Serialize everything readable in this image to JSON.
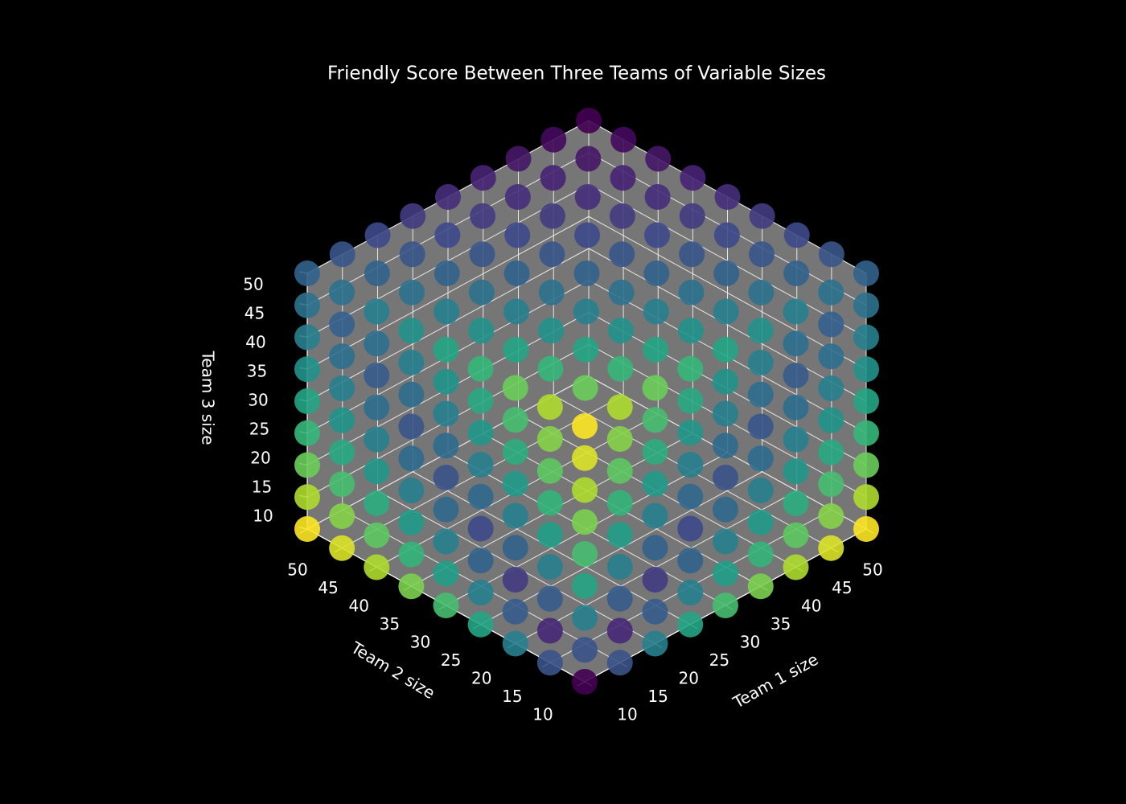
{
  "chart_data": {
    "type": "scatter3d",
    "title": "Friendly Score Between Three Teams of Variable Sizes",
    "xlabel": "Team 1 size",
    "ylabel": "Team 2 size",
    "zlabel": "Team 3 size",
    "cmap": "viridis",
    "grid": true,
    "xlim": [
      10,
      50
    ],
    "ylim": [
      10,
      50
    ],
    "zlim": [
      10,
      50
    ],
    "xticks": [
      10,
      15,
      20,
      25,
      30,
      35,
      40,
      45,
      50
    ],
    "yticks": [
      10,
      15,
      20,
      25,
      30,
      35,
      40,
      45,
      50
    ],
    "zticks": [
      10,
      15,
      20,
      25,
      30,
      35,
      40,
      45,
      50
    ],
    "x": [
      10,
      10,
      10,
      10,
      10,
      10,
      10,
      10,
      10,
      15,
      15,
      15,
      15,
      15,
      15,
      15,
      15,
      15,
      20,
      20,
      20,
      20,
      20,
      20,
      20,
      20,
      20,
      25,
      25,
      25,
      25,
      25,
      25,
      25,
      25,
      25,
      30,
      30,
      30,
      30,
      30,
      30,
      30,
      30,
      30,
      35,
      35,
      35,
      35,
      35,
      35,
      35,
      35,
      35,
      40,
      40,
      40,
      40,
      40,
      40,
      40,
      40,
      40,
      45,
      45,
      45,
      45,
      45,
      45,
      45,
      45,
      45,
      50,
      50,
      50,
      50,
      50,
      50,
      50,
      50,
      50,
      10,
      10,
      10,
      10,
      10,
      10,
      10,
      10,
      10,
      10,
      10,
      10,
      10,
      10,
      10,
      10,
      10,
      10,
      10,
      10,
      10,
      10,
      10,
      10,
      10,
      10,
      10,
      10,
      10,
      10,
      10,
      10,
      10,
      10,
      10,
      10,
      10,
      10,
      10,
      10,
      10,
      10,
      10,
      10,
      10,
      10,
      10,
      10,
      10,
      10,
      10,
      10,
      10,
      10,
      10,
      10,
      10,
      10,
      10,
      10,
      10,
      10,
      10,
      10,
      10,
      10,
      10,
      10,
      10,
      10,
      10,
      10,
      15,
      20,
      25,
      30,
      35,
      40,
      45,
      50,
      15,
      20,
      25,
      30,
      35,
      40,
      45,
      50,
      15,
      20,
      25,
      30,
      35,
      40,
      45,
      50,
      15,
      20,
      25,
      30,
      35,
      40,
      45,
      50,
      15,
      20,
      25,
      30,
      35,
      40,
      45,
      50,
      15,
      20,
      25,
      30,
      35,
      40,
      45,
      50,
      15,
      20,
      25,
      30,
      35,
      40,
      45,
      50,
      15,
      20,
      25,
      30,
      35,
      40,
      45,
      50
    ],
    "y": [
      10,
      15,
      20,
      25,
      30,
      35,
      40,
      45,
      50,
      10,
      15,
      20,
      25,
      30,
      35,
      40,
      45,
      50,
      10,
      15,
      20,
      25,
      30,
      35,
      40,
      45,
      50,
      10,
      15,
      20,
      25,
      30,
      35,
      40,
      45,
      50,
      10,
      15,
      20,
      25,
      30,
      35,
      40,
      45,
      50,
      10,
      15,
      20,
      25,
      30,
      35,
      40,
      45,
      50,
      10,
      15,
      20,
      25,
      30,
      35,
      40,
      45,
      50,
      10,
      15,
      20,
      25,
      30,
      35,
      40,
      45,
      50,
      10,
      15,
      20,
      25,
      30,
      35,
      40,
      45,
      50,
      10,
      15,
      20,
      25,
      30,
      35,
      40,
      45,
      50,
      10,
      15,
      20,
      25,
      30,
      35,
      40,
      45,
      50,
      10,
      15,
      20,
      25,
      30,
      35,
      40,
      45,
      50,
      10,
      15,
      20,
      25,
      30,
      35,
      40,
      45,
      50,
      10,
      15,
      20,
      25,
      30,
      35,
      40,
      45,
      50,
      10,
      15,
      20,
      25,
      30,
      35,
      40,
      45,
      50,
      10,
      15,
      20,
      25,
      30,
      35,
      40,
      45,
      50,
      10,
      15,
      20,
      25,
      30,
      35,
      40,
      45,
      50,
      10,
      10,
      10,
      10,
      10,
      10,
      10,
      10,
      10,
      10,
      10,
      10,
      10,
      10,
      10,
      10,
      10,
      10,
      10,
      10,
      10,
      10,
      10,
      10,
      10,
      10,
      10,
      10,
      10,
      10,
      10,
      10,
      10,
      10,
      10,
      10,
      10,
      10,
      10,
      10,
      10,
      10,
      10,
      10,
      10,
      10,
      10,
      10,
      10,
      10,
      10,
      10,
      10,
      10,
      10,
      10,
      10,
      10,
      10,
      10,
      10,
      10,
      10,
      10
    ],
    "z": [
      50,
      50,
      50,
      50,
      50,
      50,
      50,
      50,
      50,
      50,
      50,
      50,
      50,
      50,
      50,
      50,
      50,
      50,
      50,
      50,
      50,
      50,
      50,
      50,
      50,
      50,
      50,
      50,
      50,
      50,
      50,
      50,
      50,
      50,
      50,
      50,
      50,
      50,
      50,
      50,
      50,
      50,
      50,
      50,
      50,
      50,
      50,
      50,
      50,
      50,
      50,
      50,
      50,
      50,
      50,
      50,
      50,
      50,
      50,
      50,
      50,
      50,
      50,
      50,
      50,
      50,
      50,
      50,
      50,
      50,
      50,
      50,
      50,
      50,
      50,
      50,
      50,
      50,
      50,
      50,
      50,
      10,
      10,
      10,
      10,
      10,
      10,
      10,
      10,
      10,
      15,
      15,
      15,
      15,
      15,
      15,
      15,
      15,
      15,
      20,
      20,
      20,
      20,
      20,
      20,
      20,
      20,
      20,
      25,
      25,
      25,
      25,
      25,
      25,
      25,
      25,
      25,
      30,
      30,
      30,
      30,
      30,
      30,
      30,
      30,
      30,
      35,
      35,
      35,
      35,
      35,
      35,
      35,
      35,
      35,
      40,
      40,
      40,
      40,
      40,
      40,
      40,
      40,
      40,
      45,
      45,
      45,
      45,
      45,
      45,
      45,
      45,
      45,
      10,
      10,
      10,
      10,
      10,
      10,
      10,
      10,
      15,
      15,
      15,
      15,
      15,
      15,
      15,
      15,
      20,
      20,
      20,
      20,
      20,
      20,
      20,
      20,
      25,
      25,
      25,
      25,
      25,
      25,
      25,
      25,
      30,
      30,
      30,
      30,
      30,
      30,
      30,
      30,
      35,
      35,
      35,
      35,
      35,
      35,
      35,
      35,
      40,
      40,
      40,
      40,
      40,
      40,
      40,
      40,
      45,
      45,
      45,
      45,
      45,
      45,
      45,
      45
    ],
    "values": [
      1.14,
      1.0,
      0.88,
      0.76,
      0.67,
      0.58,
      0.5,
      0.43,
      0.36,
      1.0,
      0.88,
      0.76,
      0.67,
      0.58,
      0.5,
      0.43,
      0.36,
      0.3,
      0.88,
      0.76,
      0.67,
      0.58,
      0.5,
      0.43,
      0.36,
      0.3,
      0.25,
      0.76,
      0.67,
      0.58,
      0.5,
      0.43,
      0.36,
      0.3,
      0.25,
      0.2,
      0.67,
      0.58,
      0.5,
      0.43,
      0.36,
      0.3,
      0.25,
      0.2,
      0.15,
      0.58,
      0.5,
      0.43,
      0.36,
      0.3,
      0.25,
      0.2,
      0.15,
      0.11,
      0.5,
      0.43,
      0.36,
      0.3,
      0.25,
      0.2,
      0.15,
      0.11,
      0.07,
      0.43,
      0.36,
      0.3,
      0.25,
      0.2,
      0.15,
      0.11,
      0.07,
      0.03,
      0.36,
      0.3,
      0.25,
      0.2,
      0.15,
      0.11,
      0.07,
      0.03,
      0.0,
      0.0,
      0.29,
      0.5,
      0.67,
      0.8,
      0.91,
      1.0,
      1.08,
      1.14,
      0.29,
      0.13,
      0.33,
      0.5,
      0.64,
      0.75,
      0.85,
      0.93,
      1.0,
      0.5,
      0.33,
      0.2,
      0.36,
      0.5,
      0.62,
      0.71,
      0.8,
      0.88,
      0.67,
      0.5,
      0.36,
      0.25,
      0.38,
      0.5,
      0.6,
      0.69,
      0.76,
      0.8,
      0.64,
      0.5,
      0.38,
      0.29,
      0.4,
      0.5,
      0.59,
      0.67,
      0.91,
      0.75,
      0.62,
      0.5,
      0.4,
      0.31,
      0.41,
      0.5,
      0.58,
      1.0,
      0.85,
      0.71,
      0.6,
      0.5,
      0.41,
      0.33,
      0.42,
      0.5,
      1.08,
      0.93,
      0.8,
      0.69,
      0.59,
      0.5,
      0.42,
      0.35,
      0.43,
      0.29,
      0.5,
      0.67,
      0.8,
      0.91,
      1.0,
      1.08,
      1.14,
      0.13,
      0.33,
      0.5,
      0.64,
      0.75,
      0.85,
      0.93,
      1.0,
      0.33,
      0.2,
      0.36,
      0.5,
      0.62,
      0.71,
      0.8,
      0.88,
      0.5,
      0.36,
      0.25,
      0.38,
      0.5,
      0.6,
      0.69,
      0.76,
      0.64,
      0.5,
      0.38,
      0.29,
      0.4,
      0.5,
      0.59,
      0.67,
      0.75,
      0.62,
      0.5,
      0.4,
      0.31,
      0.41,
      0.5,
      0.58,
      0.85,
      0.71,
      0.6,
      0.5,
      0.41,
      0.33,
      0.42,
      0.5,
      0.93,
      0.8,
      0.69,
      0.59,
      0.5,
      0.42,
      0.35,
      0.43
    ]
  }
}
